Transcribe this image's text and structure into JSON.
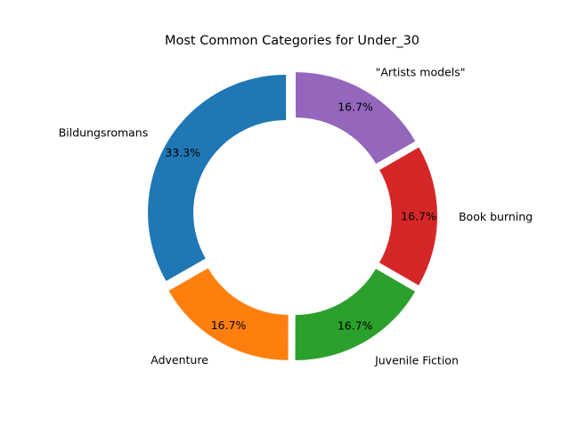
{
  "chart_data": {
    "type": "pie",
    "variant": "donut",
    "title": "Most Common Categories for Under_30",
    "categories": [
      "Bildungsromans",
      "Adventure",
      "Juvenile Fiction",
      "Book burning",
      "\"Artists models\""
    ],
    "values": [
      33.3,
      16.7,
      16.7,
      16.7,
      16.7
    ],
    "value_labels": [
      "33.3%",
      "16.7%",
      "16.7%",
      "16.7%",
      "16.7%"
    ],
    "colors": [
      "#1f77b4",
      "#ff7f0e",
      "#2ca02c",
      "#d62728",
      "#9467bd"
    ],
    "start_angle_deg": 90,
    "direction": "counterclockwise",
    "legend": "none"
  }
}
